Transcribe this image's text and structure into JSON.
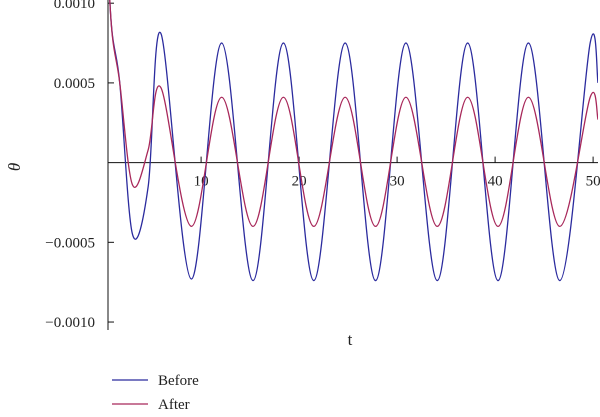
{
  "chart_data": {
    "type": "line",
    "xlabel": "t",
    "ylabel": "θ",
    "xlim": [
      0.5,
      50.5
    ],
    "ylim": [
      -0.00105,
      0.00102
    ],
    "x_ticks": [
      10,
      20,
      30,
      40,
      50
    ],
    "x_tick_labels": [
      "10",
      "20",
      "30",
      "40",
      "50"
    ],
    "y_ticks": [
      0.001,
      0.0005,
      -0.0005,
      -0.001
    ],
    "y_tick_labels": [
      "0.0010",
      "0.0005",
      "−0.0005",
      "−0.0010"
    ],
    "grid": false,
    "legend_position": "bottom-left",
    "series": [
      {
        "name": "Before",
        "color": "#2b2b9e",
        "x": [
          0,
          0.7,
          1.7,
          3.0,
          4.6,
          5.9,
          9.0,
          12.1,
          15.3,
          18.4,
          21.5,
          24.7,
          27.8,
          30.9,
          34.1,
          37.2,
          40.3,
          43.4,
          46.6,
          49.7,
          50.5
        ],
        "y": [
          0.0025,
          0.001,
          0.0005,
          -0.00045,
          -0.00015,
          0.00081,
          -0.00073,
          0.00075,
          -0.00074,
          0.00075,
          -0.00074,
          0.00075,
          -0.00074,
          0.00075,
          -0.00074,
          0.00075,
          -0.00074,
          0.00075,
          -0.00074,
          0.00075,
          0.0005
        ]
      },
      {
        "name": "After",
        "color": "#a8285a",
        "x": [
          0,
          0.7,
          1.7,
          3.0,
          4.6,
          5.9,
          9.0,
          12.1,
          15.3,
          18.4,
          21.5,
          24.7,
          27.8,
          30.9,
          34.1,
          37.2,
          40.3,
          43.4,
          46.6,
          49.7,
          50.5
        ],
        "y": [
          0.0025,
          0.001,
          0.0005,
          -0.00014,
          8e-05,
          0.00047,
          -0.0004,
          0.00041,
          -0.0004,
          0.00041,
          -0.0004,
          0.00041,
          -0.0004,
          0.00041,
          -0.0004,
          0.00041,
          -0.0004,
          0.00041,
          -0.0004,
          0.00041,
          0.00027
        ]
      }
    ]
  }
}
